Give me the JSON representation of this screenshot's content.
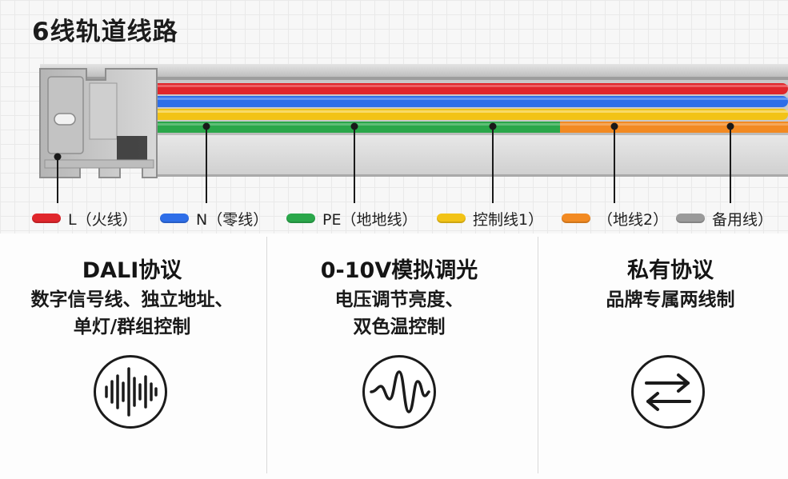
{
  "title": "6线轨道线路",
  "wires": {
    "colors": {
      "red": "#e0262b",
      "blue": "#2e6ee8",
      "green": "#2aa74a",
      "yellow": "#f2c316",
      "orange": "#f28a22",
      "gray": "#9a9a9a"
    }
  },
  "legend": [
    {
      "color": "#e0262b",
      "label": "L（火线）"
    },
    {
      "color": "#2e6ee8",
      "label": "N（零线）"
    },
    {
      "color": "#2aa74a",
      "label": "PE（地地线）"
    },
    {
      "color": "#f2c316",
      "label": "控制线1）"
    },
    {
      "color": "#f28a22",
      "label": "（地线2）"
    },
    {
      "color": "#9a9a9a",
      "label": "备用线）"
    }
  ],
  "protocols": [
    {
      "title": "DALI协议",
      "lines": [
        "数字信号线、独立地址、",
        "单灯/群组控制"
      ],
      "icon": "sound-wave-icon"
    },
    {
      "title": "0-10V模拟调光",
      "lines": [
        "电压调节亮度、",
        "双色温控制"
      ],
      "icon": "sine-wave-icon"
    },
    {
      "title": "私有协议",
      "lines": [
        "品牌专属两线制"
      ],
      "icon": "swap-arrows-icon"
    }
  ]
}
